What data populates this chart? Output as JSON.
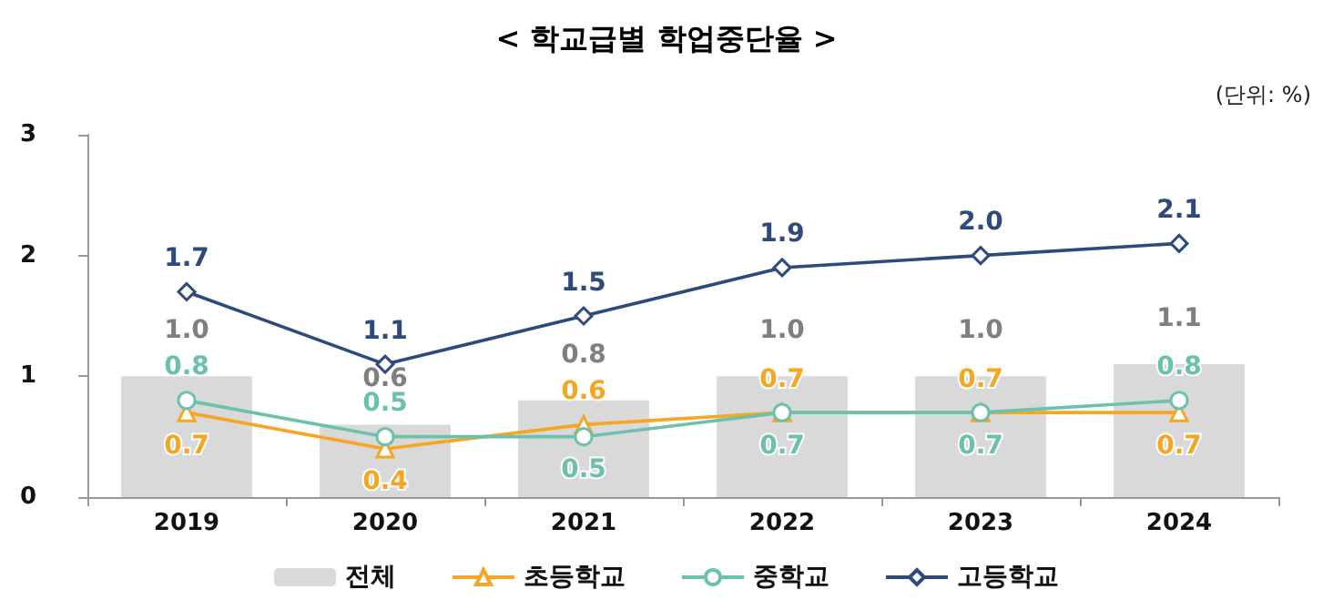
{
  "chart_data": {
    "type": "bar",
    "title": "< 학교급별 학업중단율 >",
    "annotations": [
      "(단위: %)"
    ],
    "categories": [
      "2019",
      "2020",
      "2021",
      "2022",
      "2023",
      "2024"
    ],
    "series": [
      {
        "name": "전체",
        "color": "#d9d9d9",
        "values": [
          1.0,
          0.6,
          0.8,
          1.0,
          1.0,
          1.1
        ],
        "value_labels": [
          "1.0",
          "0.6",
          "0.8",
          "1.0",
          "1.0",
          "1.1"
        ]
      },
      {
        "name": "초등학교",
        "type": "line",
        "color": "#f5a623",
        "marker": "triangle",
        "values": [
          0.7,
          0.4,
          0.6,
          0.7,
          0.7,
          0.7
        ],
        "value_labels": [
          "0.7",
          "0.4",
          "0.6",
          "0.7",
          "0.7",
          "0.7"
        ]
      },
      {
        "name": "중학교",
        "type": "line",
        "color": "#6cc0ae",
        "marker": "circle",
        "values": [
          0.8,
          0.5,
          0.5,
          0.7,
          0.7,
          0.8
        ],
        "value_labels": [
          "0.8",
          "0.5",
          "0.5",
          "0.7",
          "0.7",
          "0.8"
        ]
      },
      {
        "name": "고등학교",
        "type": "line",
        "color": "#2e4a7d",
        "marker": "diamond",
        "values": [
          1.7,
          1.1,
          1.5,
          1.9,
          2.0,
          2.1
        ],
        "value_labels": [
          "1.7",
          "1.1",
          "1.5",
          "1.9",
          "2.0",
          "2.1"
        ]
      }
    ],
    "ylim": [
      0,
      3
    ],
    "yticks": [
      0,
      1,
      2,
      3
    ],
    "grid": false,
    "legend": "bottom"
  }
}
